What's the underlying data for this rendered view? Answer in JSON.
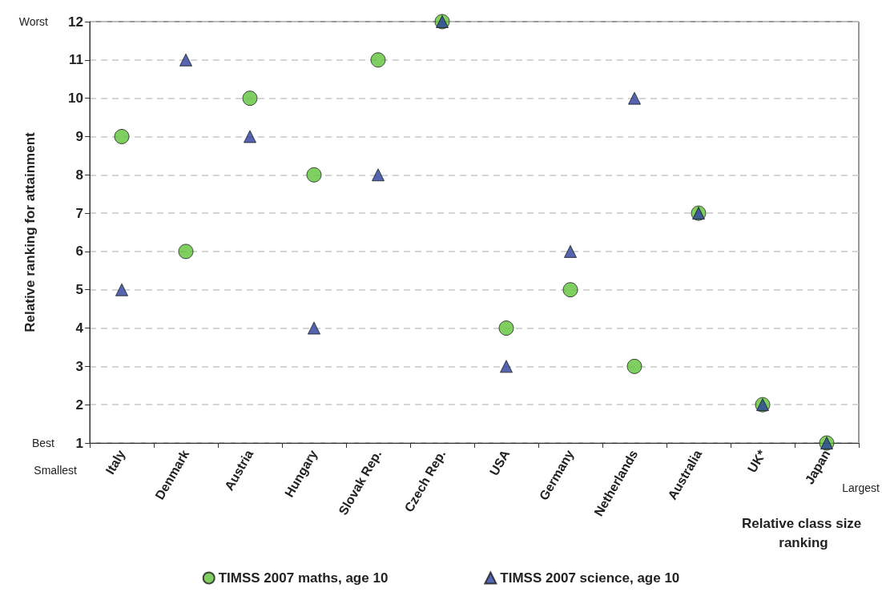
{
  "chart_data": {
    "type": "scatter",
    "ylabel": "Relative ranking for attainment",
    "xlabel": "Relative class size ranking",
    "categories": [
      "Italy",
      "Denmark",
      "Austria",
      "Hungary",
      "Slovak Rep.",
      "Czech Rep.",
      "USA",
      "Germany",
      "Netherlands",
      "Australia",
      "UK*",
      "Japan"
    ],
    "series": [
      {
        "name": "TIMSS 2007 maths, age 10",
        "color": "#5fc43a",
        "marker": "circle",
        "values": [
          9,
          6,
          10,
          8,
          11,
          12,
          4,
          5,
          3,
          7,
          2,
          1
        ]
      },
      {
        "name": "TIMSS 2007 science, age 10",
        "color": "#2b3f9c",
        "marker": "triangle",
        "values": [
          5,
          11,
          9,
          4,
          8,
          12,
          3,
          6,
          10,
          7,
          2,
          1
        ]
      }
    ],
    "ylim": [
      1,
      12
    ],
    "yticks": [
      1,
      2,
      3,
      4,
      5,
      6,
      7,
      8,
      9,
      10,
      11,
      12
    ],
    "grid": "y",
    "legend": "bottom",
    "annotations": [
      "Worst",
      "Best",
      "Smallest",
      "Largest"
    ]
  }
}
